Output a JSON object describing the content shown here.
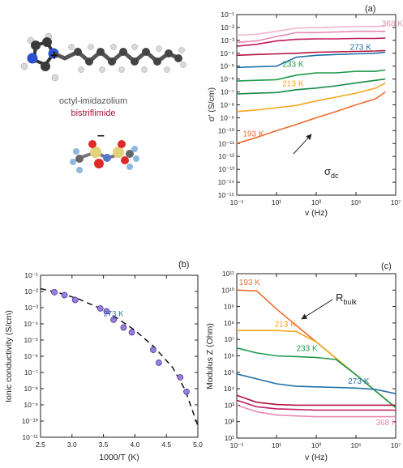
{
  "molecule": {
    "cation_name": "octyl-imidazolium",
    "anion_name": "bistriflimide",
    "plus_sign": "+",
    "minus_sign": "–",
    "colors": {
      "cation_text": "#555555",
      "anion_text": "#b0103a"
    }
  },
  "chart_data": [
    {
      "id": "a",
      "type": "line",
      "panel_label": "(a)",
      "xlabel": "v (Hz)",
      "ylabel": "σ' (S/cm)",
      "xscale": "log",
      "yscale": "log",
      "xlim": [
        0.1,
        10000000
      ],
      "ylim": [
        1e-15,
        0.1
      ],
      "xticks": [
        "10⁻¹",
        "10¹",
        "10³",
        "10⁵",
        "10⁷"
      ],
      "yticks": [
        "10⁻¹",
        "10⁻²",
        "10⁻³",
        "10⁻⁴",
        "10⁻⁵",
        "10⁻⁶",
        "10⁻⁷",
        "10⁻⁸",
        "10⁻⁹",
        "10⁻¹⁰",
        "10⁻¹¹",
        "10⁻¹²",
        "10⁻¹³",
        "10⁻¹⁴",
        "10⁻¹⁵"
      ],
      "annotations": [
        {
          "text": "368 K",
          "x": 2000000,
          "y": 0.012,
          "color": "#e889b0"
        },
        {
          "text": "273 K",
          "x": 50000,
          "y": 0.00018,
          "color": "#1f6fa8"
        },
        {
          "text": "233 K",
          "x": 20,
          "y": 9e-06,
          "color": "#1b9a4b"
        },
        {
          "text": "213 K",
          "x": 20,
          "y": 2.8e-07,
          "color": "#f4a51c"
        },
        {
          "text": "193 K",
          "x": 0.2,
          "y": 3.5e-11,
          "color": "#ee6b2f"
        }
      ],
      "arrow_label": {
        "text": "σ",
        "sub": "dc"
      },
      "series": [
        {
          "color": "#f3b6cf",
          "x": [
            0.1,
            1,
            10,
            100,
            1000,
            10000,
            100000,
            1000000,
            3000000
          ],
          "y": [
            0.0025,
            0.003,
            0.005,
            0.009,
            0.01,
            0.011,
            0.012,
            0.012,
            0.013
          ]
        },
        {
          "color": "#e889b0",
          "x": [
            0.1,
            1,
            10,
            100,
            1000,
            10000,
            100000,
            1000000,
            3000000
          ],
          "y": [
            0.0007,
            0.0009,
            0.002,
            0.004,
            0.004,
            0.0045,
            0.005,
            0.005,
            0.005
          ]
        },
        {
          "color": "#c2185b",
          "x": [
            0.1,
            1,
            10,
            100,
            1000,
            10000,
            100000,
            1000000,
            3000000
          ],
          "y": [
            0.00035,
            0.0005,
            0.0009,
            0.0012,
            0.0013,
            0.0013,
            0.0014,
            0.0014,
            0.0015
          ]
        },
        {
          "color": "#b3123f",
          "x": [
            0.1,
            1,
            10,
            100,
            1000,
            10000,
            100000,
            1000000,
            3000000
          ],
          "y": [
            7e-05,
            8e-05,
            9e-05,
            0.0001,
            0.00012,
            0.00013,
            0.00014,
            0.00015,
            0.00016
          ]
        },
        {
          "color": "#1f6fa8",
          "x": [
            0.1,
            1,
            10,
            100,
            1000,
            10000,
            100000,
            1000000,
            3000000
          ],
          "y": [
            8e-06,
            9e-06,
            1e-05,
            5e-05,
            7e-05,
            8e-05,
            9e-05,
            0.0001,
            0.00012
          ]
        },
        {
          "color": "#1b9a4b",
          "x": [
            0.1,
            1,
            10,
            100,
            1000,
            10000,
            100000,
            1000000,
            3000000
          ],
          "y": [
            7e-07,
            8e-07,
            9e-07,
            2e-06,
            3e-06,
            3e-06,
            4e-06,
            4e-06,
            5e-06
          ]
        },
        {
          "color": "#158a45",
          "x": [
            0.1,
            1,
            10,
            100,
            1000,
            10000,
            100000,
            1000000,
            3000000
          ],
          "y": [
            7e-08,
            8e-08,
            9e-08,
            1.5e-07,
            2e-07,
            3e-07,
            5e-07,
            8e-07,
            1e-06
          ]
        },
        {
          "color": "#f4a51c",
          "x": [
            0.1,
            1,
            10,
            100,
            1000,
            10000,
            100000,
            1000000,
            3000000
          ],
          "y": [
            3e-09,
            4e-09,
            6e-09,
            9e-09,
            2e-08,
            4e-08,
            8e-08,
            2e-07,
            5e-07
          ]
        },
        {
          "color": "#ee6b2f",
          "x": [
            0.1,
            1,
            10,
            100,
            1000,
            10000,
            100000,
            1000000,
            3000000
          ],
          "y": [
            1e-11,
            3e-11,
            1e-10,
            3e-10,
            1e-09,
            3e-09,
            1e-08,
            3e-08,
            1e-07
          ]
        }
      ]
    },
    {
      "id": "b",
      "type": "scatter",
      "panel_label": "(b)",
      "xlabel": "1000/T (K)",
      "ylabel": "Ionic conductivity (S/cm)",
      "yscale": "log",
      "xlim": [
        2.5,
        5.0
      ],
      "ylim": [
        1e-11,
        0.1
      ],
      "xticks": [
        "2.5",
        "3.0",
        "3.5",
        "4.0",
        "4.5",
        "5.0"
      ],
      "yticks": [
        "10⁻¹",
        "10⁻²",
        "10⁻³",
        "10⁻⁴",
        "10⁻⁵",
        "10⁻⁶",
        "10⁻⁷",
        "10⁻⁸",
        "10⁻⁹",
        "10⁻¹⁰",
        "10⁻¹¹"
      ],
      "annotation": {
        "text": "273 K",
        "x": 3.66,
        "y": 0.0003,
        "color": "#1f6fa8"
      },
      "points": {
        "x": [
          2.72,
          2.88,
          3.05,
          3.45,
          3.55,
          3.66,
          3.82,
          3.95,
          4.29,
          4.38,
          4.72,
          4.82
        ],
        "y": [
          0.009,
          0.006,
          0.003,
          0.0009,
          0.0006,
          0.00018,
          6e-05,
          3e-05,
          2.5e-06,
          4e-07,
          5e-08,
          6.5e-09
        ],
        "color": "#9b7fd9"
      },
      "fit": {
        "x": [
          2.5,
          2.8,
          3.1,
          3.4,
          3.7,
          4.0,
          4.3,
          4.6,
          4.8,
          5.0
        ],
        "y": [
          0.015,
          0.008,
          0.0035,
          0.0011,
          0.00025,
          4e-05,
          4e-06,
          2e-07,
          8e-09,
          5e-11
        ]
      }
    },
    {
      "id": "c",
      "type": "line",
      "panel_label": "(c)",
      "xlabel": "v (Hz)",
      "ylabel": "Modulus Z (Ohm)",
      "xscale": "log",
      "yscale": "log",
      "xlim": [
        0.1,
        10000000
      ],
      "ylim": [
        10,
        100000000000
      ],
      "xticks": [
        "10⁻¹",
        "10¹",
        "10³",
        "10⁵",
        "10⁷"
      ],
      "yticks": [
        "10¹¹",
        "10¹⁰",
        "10⁹",
        "10⁸",
        "10⁷",
        "10⁶",
        "10⁵",
        "10⁴",
        "10³",
        "10²",
        "10¹"
      ],
      "annotations": [
        {
          "text": "193 K",
          "x": 0.13,
          "y": 20000000000,
          "color": "#ee6b2f"
        },
        {
          "text": "213 K",
          "x": 8,
          "y": 60000000,
          "color": "#f4a51c"
        },
        {
          "text": "233 K",
          "x": 100,
          "y": 2000000,
          "color": "#1b9a4b"
        },
        {
          "text": "273 K",
          "x": 40000,
          "y": 20000,
          "color": "#1f6fa8"
        },
        {
          "text": "368 K",
          "x": 1000000,
          "y": 60,
          "color": "#e889b0"
        }
      ],
      "arrow_label": {
        "text": "R",
        "sub": "bulk"
      },
      "series": [
        {
          "color": "#ee6b2f",
          "x": [
            0.1,
            1,
            10,
            100,
            1000,
            10000,
            100000,
            1000000,
            10000000
          ],
          "y": [
            10000000000,
            9000000000,
            700000000,
            70000000,
            7000000,
            700000,
            70000,
            7000,
            700
          ]
        },
        {
          "color": "#f4a51c",
          "x": [
            0.1,
            1,
            10,
            100,
            1000,
            10000,
            100000,
            1000000,
            10000000
          ],
          "y": [
            35000000,
            35000000,
            35000000,
            30000000,
            7000000,
            700000,
            70000,
            7000,
            700
          ]
        },
        {
          "color": "#1b9a4b",
          "x": [
            0.1,
            1,
            10,
            100,
            1000,
            10000,
            100000,
            1000000,
            10000000
          ],
          "y": [
            3000000,
            1500000,
            1000000,
            900000,
            800000,
            600000,
            70000,
            7000,
            700
          ]
        },
        {
          "color": "#1f6fa8",
          "x": [
            0.1,
            1,
            10,
            100,
            1000,
            10000,
            100000,
            1000000,
            10000000
          ],
          "y": [
            80000,
            40000,
            20000,
            14000,
            13000,
            12000,
            11000,
            9000,
            5000
          ]
        },
        {
          "color": "#b3123f",
          "x": [
            0.1,
            1,
            10,
            100,
            1000,
            10000,
            100000,
            1000000,
            10000000
          ],
          "y": [
            4000,
            1500,
            1100,
            1000,
            1000,
            1000,
            1000,
            1000,
            1000
          ]
        },
        {
          "color": "#c2185b",
          "x": [
            0.1,
            1,
            10,
            100,
            1000,
            10000,
            100000,
            1000000,
            10000000
          ],
          "y": [
            2000,
            800,
            600,
            550,
            500,
            500,
            500,
            500,
            500
          ]
        },
        {
          "color": "#e889b0",
          "x": [
            0.1,
            1,
            10,
            100,
            1000,
            10000,
            100000,
            1000000,
            10000000
          ],
          "y": [
            1000,
            400,
            250,
            220,
            200,
            200,
            200,
            200,
            200
          ]
        }
      ]
    }
  ]
}
